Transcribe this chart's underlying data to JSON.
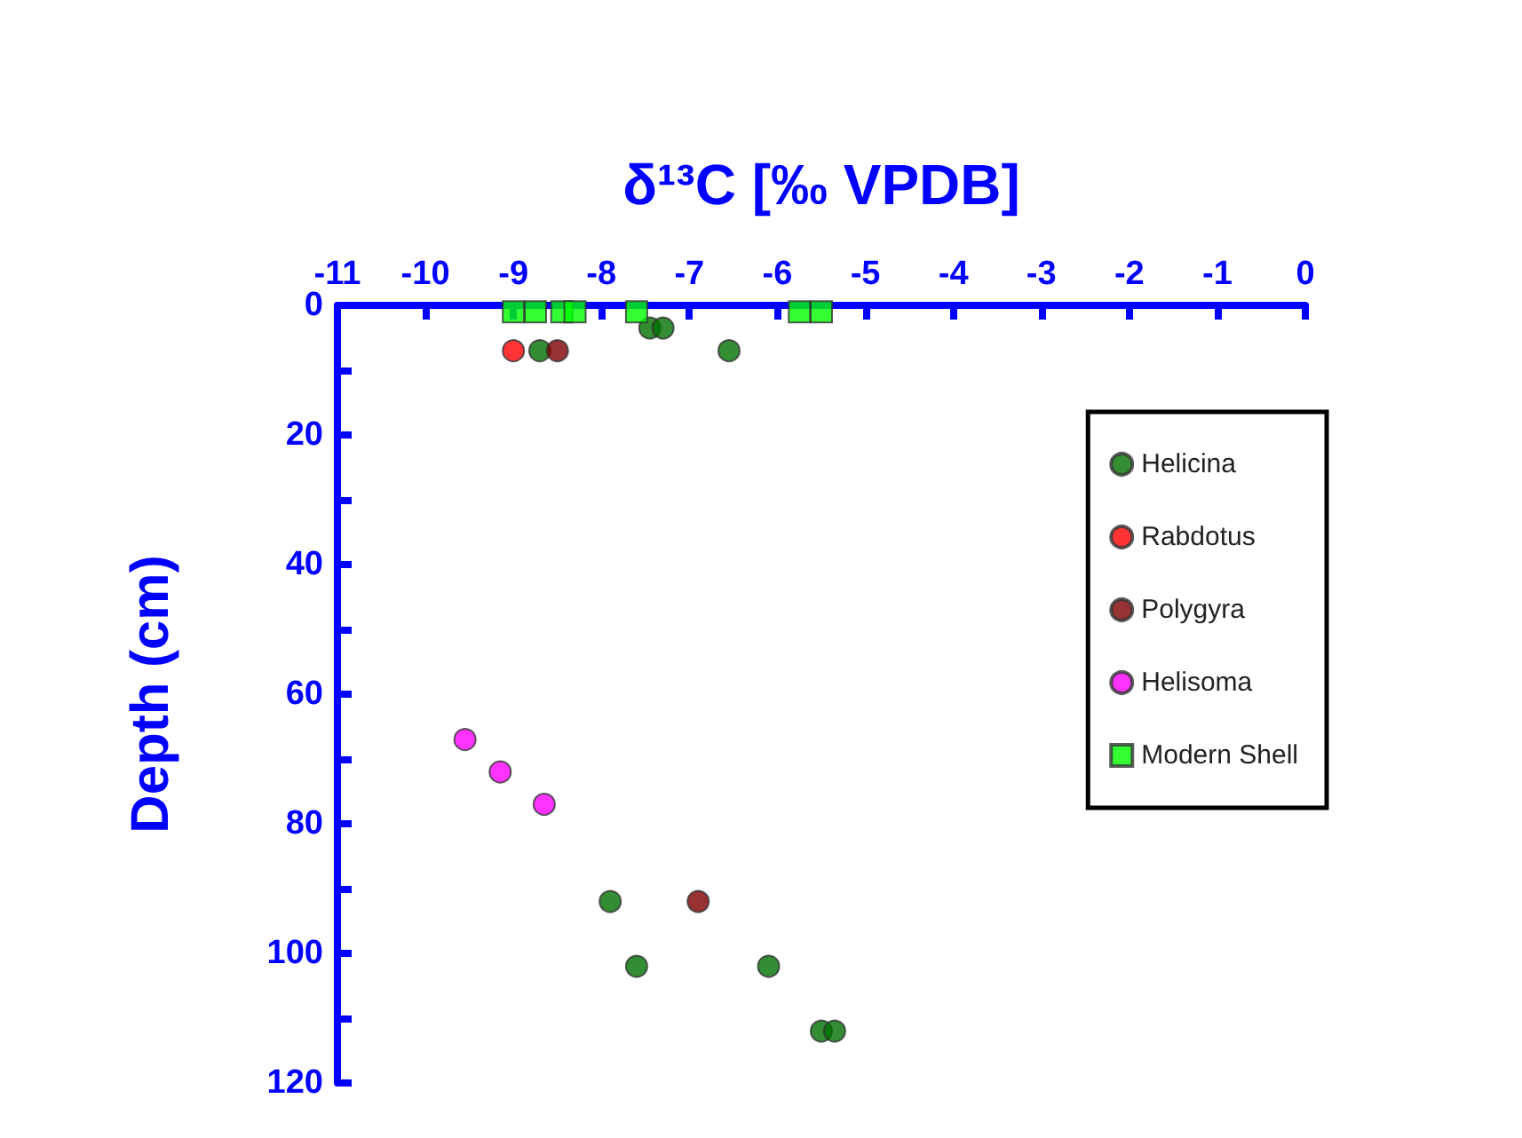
{
  "chart_data": {
    "type": "scatter",
    "xlabel": "δ¹³C [‰ VPDB]",
    "ylabel": "Depth (cm)",
    "xlim": [
      -11,
      0
    ],
    "xticks": [
      -11,
      -10,
      -9,
      -8,
      -7,
      -6,
      -5,
      -4,
      -3,
      -2,
      -1,
      0
    ],
    "ylim": [
      120,
      0
    ],
    "yticks": [
      0,
      {
        "value": 10,
        "label": null
      },
      20,
      {
        "value": 30,
        "label": null
      },
      40,
      {
        "value": 50,
        "label": null
      },
      60,
      {
        "value": 70,
        "label": null
      },
      80,
      {
        "value": 90,
        "label": null
      },
      100,
      {
        "value": 110,
        "label": null
      },
      120
    ],
    "grid": false,
    "legend": "right",
    "series": [
      {
        "name": "Helicina",
        "color": "#007000",
        "marker": "circle",
        "x": [
          -7.45,
          -7.3,
          -8.7,
          -6.55,
          -7.9,
          -7.6,
          -6.1,
          -5.5,
          -5.35
        ],
        "values": [
          3.5,
          3.5,
          7,
          7,
          92,
          102,
          102,
          112,
          112
        ]
      },
      {
        "name": "Rabdotus",
        "color": "#ff0000",
        "marker": "circle",
        "x": [
          -9.0
        ],
        "values": [
          7
        ]
      },
      {
        "name": "Polygyra",
        "color": "#7f0000",
        "marker": "circle",
        "x": [
          -8.5,
          -6.9
        ],
        "values": [
          7,
          92
        ]
      },
      {
        "name": "Helisoma",
        "color": "#ff00ff",
        "marker": "circle",
        "x": [
          -9.55,
          -9.15,
          -8.65
        ],
        "values": [
          67,
          72,
          77
        ]
      },
      {
        "name": "Modern Shell",
        "color": "#00ff00",
        "marker": "square",
        "x": [
          -9.0,
          -8.75,
          -8.45,
          -8.3,
          -7.6,
          -5.75,
          -5.5
        ],
        "values": [
          1,
          1,
          1,
          1,
          1,
          1,
          1
        ]
      }
    ]
  }
}
